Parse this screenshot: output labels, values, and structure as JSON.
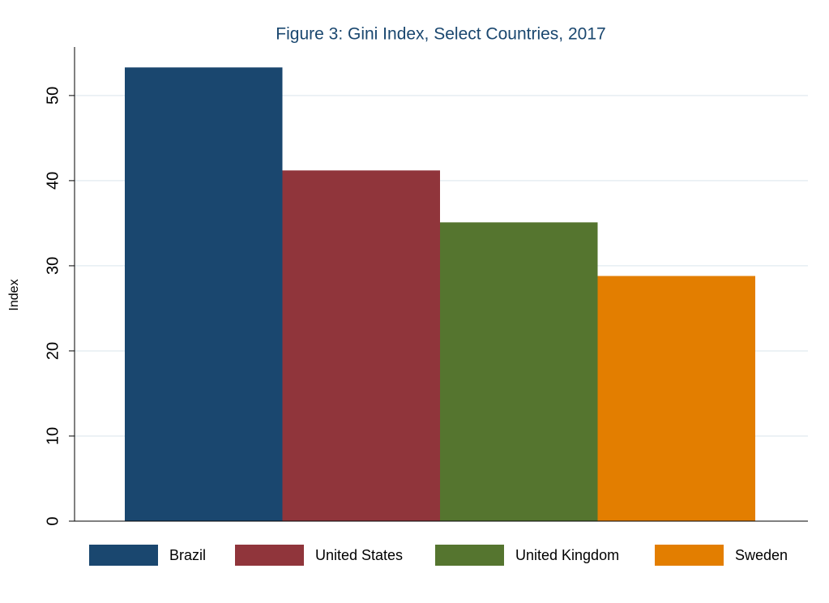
{
  "chart_data": {
    "type": "bar",
    "title": "Figure 3: Gini Index, Select Countries, 2017",
    "y_label": "Index",
    "series": [
      {
        "name": "Brazil",
        "color": "#1a476f",
        "values": [
          53.3
        ]
      },
      {
        "name": "United States",
        "color": "#90353b",
        "values": [
          41.2
        ]
      },
      {
        "name": "United Kingdom",
        "color": "#55752f",
        "values": [
          35.1
        ]
      },
      {
        "name": "Sweden",
        "color": "#e37e00",
        "values": [
          28.8
        ]
      }
    ],
    "ylim": [
      0,
      55.7
    ],
    "yticks": [
      0,
      10,
      20,
      30,
      40,
      50
    ],
    "grid": true
  }
}
